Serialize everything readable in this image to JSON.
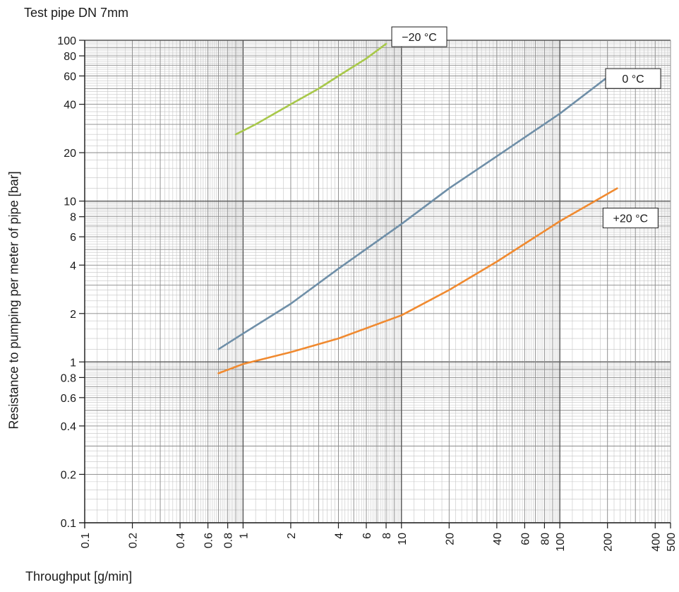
{
  "chart_data": {
    "type": "line",
    "title": "Test pipe DN 7mm",
    "xlabel": "Throughput [g/min]",
    "ylabel": "Resistance to pumping per meter of pipe [bar]",
    "xscale": "log",
    "yscale": "log",
    "xlim": [
      0.1,
      500
    ],
    "ylim": [
      0.1,
      100
    ],
    "grid": true,
    "x_ticks": [
      "0.1",
      "0.2",
      "0.4",
      "0.6",
      "0.8",
      "1",
      "2",
      "4",
      "6",
      "8",
      "10",
      "20",
      "40",
      "60",
      "80",
      "100",
      "200",
      "400",
      "500"
    ],
    "y_ticks": [
      "0.1",
      "0.2",
      "0.4",
      "0.6",
      "0.8",
      "1",
      "2",
      "4",
      "6",
      "8",
      "10",
      "20",
      "40",
      "60",
      "80",
      "100"
    ],
    "series": [
      {
        "name": "−20 °C",
        "color": "#a8c84a",
        "points": [
          [
            0.9,
            26
          ],
          [
            1.2,
            30
          ],
          [
            2.0,
            40
          ],
          [
            3.0,
            50
          ],
          [
            4.0,
            60
          ],
          [
            6.0,
            77
          ],
          [
            8.0,
            95
          ]
        ]
      },
      {
        "name": "0 °C",
        "color": "#6f8fa8",
        "points": [
          [
            0.7,
            1.2
          ],
          [
            1.0,
            1.5
          ],
          [
            2.0,
            2.3
          ],
          [
            4.0,
            3.8
          ],
          [
            10.0,
            7.2
          ],
          [
            20.0,
            12
          ],
          [
            40.0,
            19
          ],
          [
            100.0,
            35
          ],
          [
            200.0,
            59
          ]
        ]
      },
      {
        "name": "+20 °C",
        "color": "#f08a30",
        "points": [
          [
            0.7,
            0.85
          ],
          [
            1.0,
            0.97
          ],
          [
            2.0,
            1.15
          ],
          [
            4.0,
            1.4
          ],
          [
            10.0,
            1.95
          ],
          [
            20.0,
            2.8
          ],
          [
            40.0,
            4.2
          ],
          [
            100.0,
            7.5
          ],
          [
            230.0,
            12
          ]
        ]
      }
    ]
  }
}
